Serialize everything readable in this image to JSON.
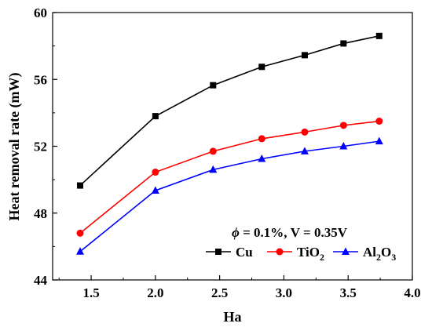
{
  "chart_data": {
    "type": "line",
    "xlabel": "Ha",
    "ylabel": "Heat removal rate (mW)",
    "xlim": [
      1.2,
      4.0
    ],
    "ylim": [
      44,
      60
    ],
    "xticks": [
      "1.5",
      "2.0",
      "2.5",
      "3.0",
      "3.5",
      "4.0"
    ],
    "yticks": [
      "44",
      "48",
      "52",
      "56",
      "60"
    ],
    "annotation": {
      "phi": "ϕ",
      "rest": " = 0.1%, V = 0.35V"
    },
    "legend_position": "bottom-right",
    "grid": false,
    "x": [
      1.414,
      2.0,
      2.449,
      2.828,
      3.162,
      3.464,
      3.742
    ],
    "series": [
      {
        "name": "Cu",
        "legend_base": "Cu",
        "legend_sub": "",
        "legend_tail": "",
        "color": "#000000",
        "marker": "square",
        "values": [
          49.65,
          53.8,
          55.65,
          56.75,
          57.45,
          58.15,
          58.6
        ]
      },
      {
        "name": "TiO2",
        "legend_base": "TiO",
        "legend_sub": "2",
        "legend_tail": "",
        "color": "#ff0000",
        "marker": "circle",
        "values": [
          46.8,
          50.45,
          51.7,
          52.45,
          52.85,
          53.25,
          53.5
        ]
      },
      {
        "name": "Al2O3",
        "legend_base": "Al",
        "legend_sub": "2",
        "legend_tail": "O",
        "legend_sub2": "3",
        "color": "#0000ff",
        "marker": "triangle",
        "values": [
          45.7,
          49.35,
          50.6,
          51.25,
          51.7,
          52.0,
          52.3
        ]
      }
    ]
  }
}
